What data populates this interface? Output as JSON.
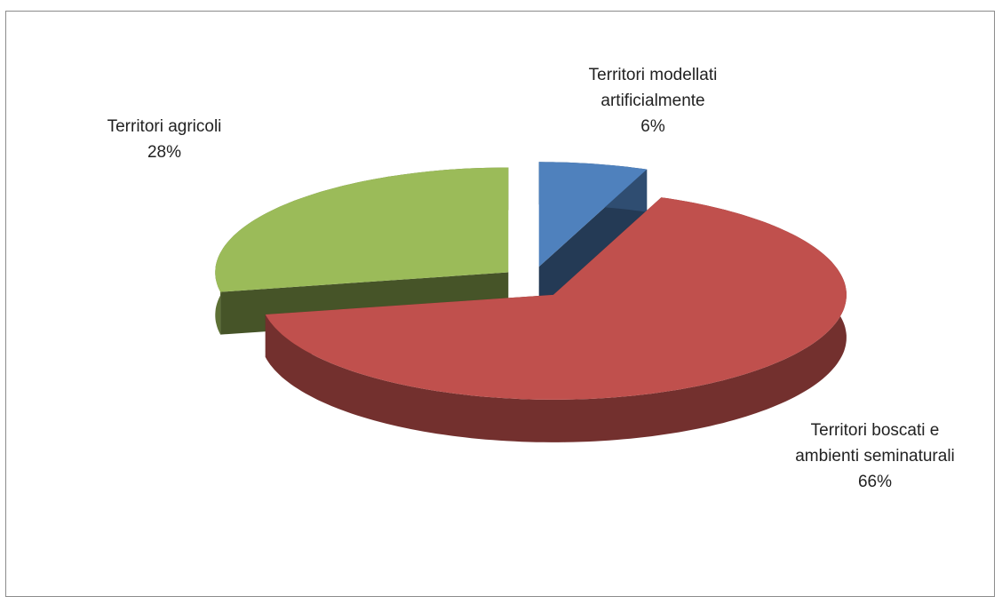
{
  "chart_data": {
    "type": "pie",
    "three_d": true,
    "exploded": true,
    "categories": [
      "Territori modellati artificialmente",
      "Territori boscati e ambienti seminaturali",
      "Territori agricoli"
    ],
    "values": [
      6,
      66,
      28
    ],
    "value_labels": [
      "6%",
      "66%",
      "28%"
    ],
    "colors": [
      "#4f81bd",
      "#c0504d",
      "#9bbb59"
    ]
  }
}
